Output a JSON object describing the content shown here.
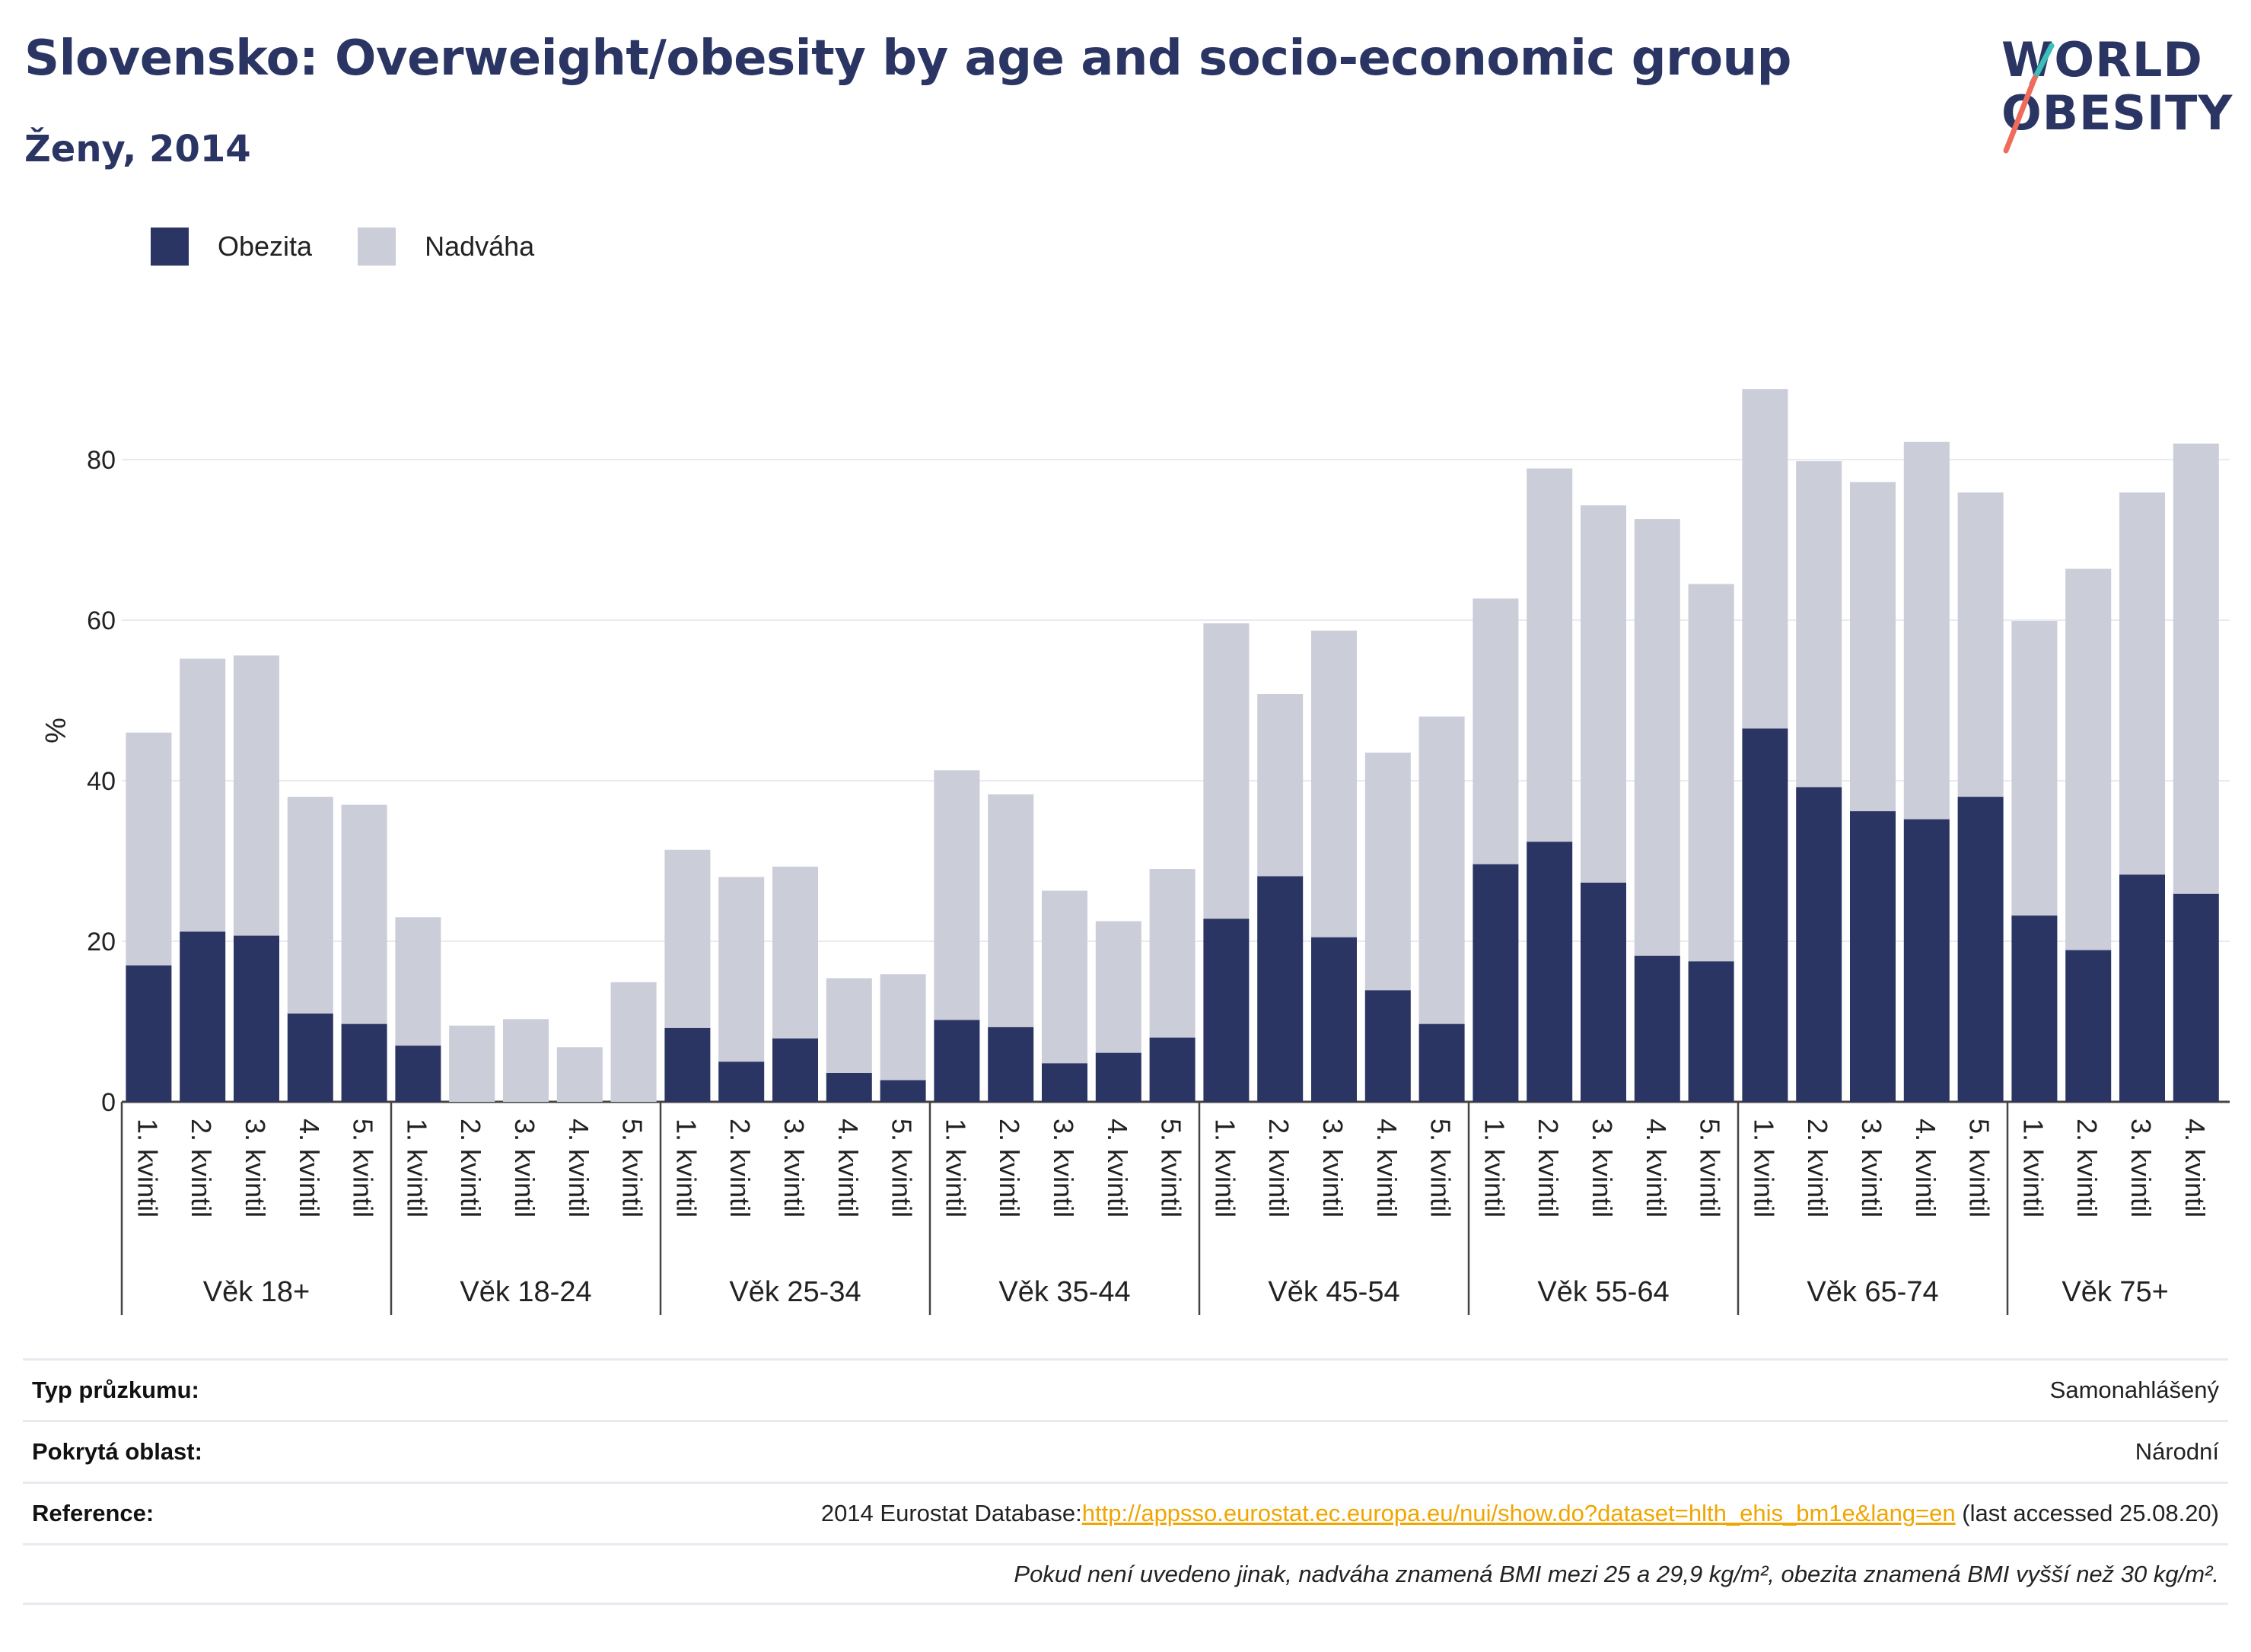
{
  "header": {
    "title": "Slovensko: Overweight/obesity by age and socio-economic group",
    "subtitle": "Ženy, 2014"
  },
  "logo": {
    "line1": "WORLD",
    "line2": "OBESITY"
  },
  "colors": {
    "obesity": "#2b3563",
    "overweight": "#cbcdd9",
    "title": "#2b3563",
    "link": "#f0a500",
    "logo_teal": "#3bbfb8",
    "logo_coral": "#ef6b5b"
  },
  "legend": [
    {
      "label": "Obezita",
      "color": "#2b3563"
    },
    {
      "label": "Nadváha",
      "color": "#cbcdd9"
    }
  ],
  "chart_data": {
    "type": "bar",
    "stacked": true,
    "ylabel": "%",
    "ylim": [
      0,
      92
    ],
    "yticks": [
      0,
      20,
      40,
      60,
      80
    ],
    "grid": true,
    "legend_position": "top-left",
    "groups": [
      {
        "label": "Věk 18+",
        "categories": [
          "1. kvintil",
          "2. kvintil",
          "3. kvintil",
          "4. kvintil",
          "5. kvintil"
        ],
        "obezita": [
          17.0,
          21.2,
          20.7,
          11.0,
          9.7
        ],
        "nadvaha": [
          29.0,
          34.0,
          34.9,
          27.0,
          27.3
        ]
      },
      {
        "label": "Věk 18-24",
        "categories": [
          "1. kvintil",
          "2. kvintil",
          "3. kvintil",
          "4. kvintil",
          "5. kvintil"
        ],
        "obezita": [
          7.0,
          0,
          0,
          0,
          0
        ],
        "nadvaha": [
          16.0,
          9.5,
          10.3,
          6.8,
          14.9
        ]
      },
      {
        "label": "Věk 25-34",
        "categories": [
          "1. kvintil",
          "2. kvintil",
          "3. kvintil",
          "4. kvintil",
          "5. kvintil"
        ],
        "obezita": [
          9.2,
          5.0,
          7.9,
          3.6,
          2.7
        ],
        "nadvaha": [
          22.2,
          23.0,
          21.4,
          11.8,
          13.2
        ]
      },
      {
        "label": "Věk 35-44",
        "categories": [
          "1. kvintil",
          "2. kvintil",
          "3. kvintil",
          "4. kvintil",
          "5. kvintil"
        ],
        "obezita": [
          10.2,
          9.3,
          4.8,
          6.1,
          8.0
        ],
        "nadvaha": [
          31.1,
          29.0,
          21.5,
          16.4,
          21.0
        ]
      },
      {
        "label": "Věk 45-54",
        "categories": [
          "1. kvintil",
          "2. kvintil",
          "3. kvintil",
          "4. kvintil",
          "5. kvintil"
        ],
        "obezita": [
          22.8,
          28.1,
          20.5,
          13.9,
          9.7
        ],
        "nadvaha": [
          36.8,
          22.7,
          38.2,
          29.6,
          38.3
        ]
      },
      {
        "label": "Věk 55-64",
        "categories": [
          "1. kvintil",
          "2. kvintil",
          "3. kvintil",
          "4. kvintil",
          "5. kvintil"
        ],
        "obezita": [
          29.6,
          32.4,
          27.3,
          18.2,
          17.5
        ],
        "nadvaha": [
          33.1,
          46.5,
          47.0,
          54.4,
          47.0
        ]
      },
      {
        "label": "Věk 65-74",
        "categories": [
          "1. kvintil",
          "2. kvintil",
          "3. kvintil",
          "4. kvintil",
          "5. kvintil"
        ],
        "obezita": [
          46.5,
          39.2,
          36.2,
          35.2,
          38.0
        ],
        "nadvaha": [
          42.3,
          40.6,
          41.0,
          47.0,
          37.9
        ]
      },
      {
        "label": "Věk 75+",
        "categories": [
          "1. kvintil",
          "2. kvintil",
          "3. kvintil",
          "4. kvintil"
        ],
        "obezita": [
          23.2,
          18.9,
          28.3,
          25.9
        ],
        "nadvaha": [
          36.7,
          47.5,
          47.6,
          56.1
        ]
      }
    ]
  },
  "info": {
    "survey_type": {
      "label": "Typ průzkumu:",
      "value": "Samonahlášený"
    },
    "coverage": {
      "label": "Pokrytá oblast:",
      "value": "Národní"
    },
    "reference": {
      "label": "Reference:",
      "prefix": "2014 Eurostat Database:",
      "link": "http://appsso.eurostat.ec.europa.eu/nui/show.do?dataset=hlth_ehis_bm1e&lang=en",
      "suffix": " (last accessed 25.08.20)"
    },
    "note": "Pokud není uvedeno jinak, nadváha znamená BMI mezi 25 a 29,9 kg/m², obezita znamená BMI vyšší než 30 kg/m²."
  }
}
